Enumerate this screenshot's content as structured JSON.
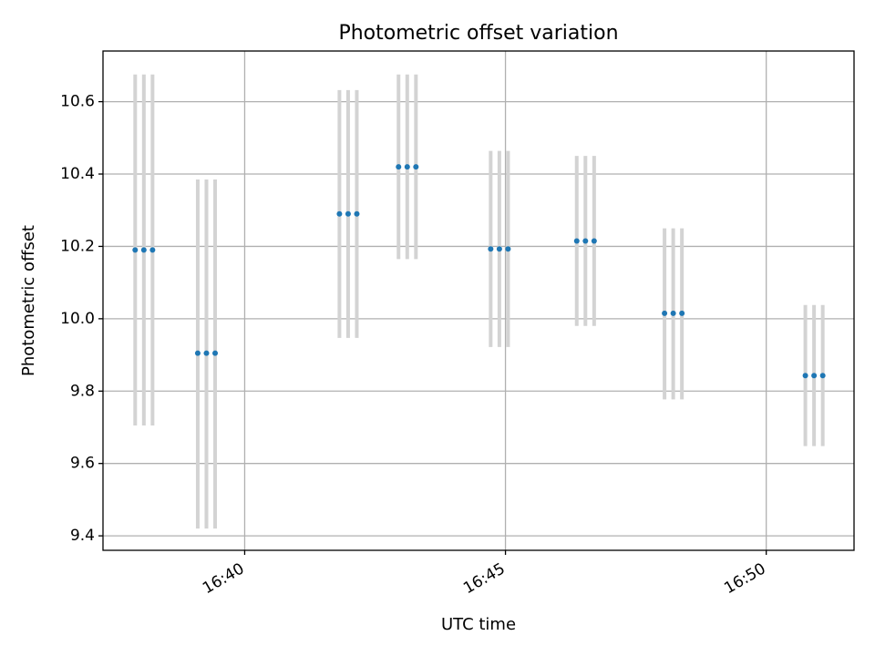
{
  "chart_data": {
    "type": "scatter",
    "title": "Photometric offset variation",
    "xlabel": "UTC time",
    "ylabel": "Photometric offset",
    "xlim": [
      "16:37:17",
      "16:51:41"
    ],
    "ylim": [
      9.36,
      10.74
    ],
    "grid": true,
    "x_ticks": [
      "16:40",
      "16:45",
      "16:50"
    ],
    "y_ticks": [
      9.4,
      9.6,
      9.8,
      10.0,
      10.2,
      10.4,
      10.6
    ],
    "colors": {
      "points": "#1f77b4",
      "error_bars": "#d3d3d3"
    },
    "series": [
      {
        "points": [
          {
            "x": "16:37:54",
            "y": 10.19,
            "yerr_low": 9.705,
            "yerr_high": 10.675
          },
          {
            "x": "16:38:04",
            "y": 10.19,
            "yerr_low": 9.705,
            "yerr_high": 10.675
          },
          {
            "x": "16:38:14",
            "y": 10.19,
            "yerr_low": 9.705,
            "yerr_high": 10.675
          },
          {
            "x": "16:39:06",
            "y": 9.905,
            "yerr_low": 9.42,
            "yerr_high": 10.385
          },
          {
            "x": "16:39:16",
            "y": 9.905,
            "yerr_low": 9.42,
            "yerr_high": 10.385
          },
          {
            "x": "16:39:26",
            "y": 9.905,
            "yerr_low": 9.42,
            "yerr_high": 10.385
          },
          {
            "x": "16:41:49",
            "y": 10.29,
            "yerr_low": 9.947,
            "yerr_high": 10.632
          },
          {
            "x": "16:41:59",
            "y": 10.29,
            "yerr_low": 9.947,
            "yerr_high": 10.632
          },
          {
            "x": "16:42:09",
            "y": 10.29,
            "yerr_low": 9.947,
            "yerr_high": 10.632
          },
          {
            "x": "16:42:57",
            "y": 10.42,
            "yerr_low": 10.165,
            "yerr_high": 10.675
          },
          {
            "x": "16:43:07",
            "y": 10.42,
            "yerr_low": 10.165,
            "yerr_high": 10.675
          },
          {
            "x": "16:43:17",
            "y": 10.42,
            "yerr_low": 10.165,
            "yerr_high": 10.675
          },
          {
            "x": "16:44:43",
            "y": 10.193,
            "yerr_low": 9.922,
            "yerr_high": 10.464
          },
          {
            "x": "16:44:53",
            "y": 10.193,
            "yerr_low": 9.922,
            "yerr_high": 10.464
          },
          {
            "x": "16:45:03",
            "y": 10.193,
            "yerr_low": 9.922,
            "yerr_high": 10.464
          },
          {
            "x": "16:46:22",
            "y": 10.215,
            "yerr_low": 9.98,
            "yerr_high": 10.45
          },
          {
            "x": "16:46:32",
            "y": 10.215,
            "yerr_low": 9.98,
            "yerr_high": 10.45
          },
          {
            "x": "16:46:42",
            "y": 10.215,
            "yerr_low": 9.98,
            "yerr_high": 10.45
          },
          {
            "x": "16:48:03",
            "y": 10.015,
            "yerr_low": 9.777,
            "yerr_high": 10.25
          },
          {
            "x": "16:48:13",
            "y": 10.015,
            "yerr_low": 9.777,
            "yerr_high": 10.25
          },
          {
            "x": "16:48:23",
            "y": 10.015,
            "yerr_low": 9.777,
            "yerr_high": 10.25
          },
          {
            "x": "16:50:45",
            "y": 9.843,
            "yerr_low": 9.648,
            "yerr_high": 10.038
          },
          {
            "x": "16:50:55",
            "y": 9.843,
            "yerr_low": 9.648,
            "yerr_high": 10.038
          },
          {
            "x": "16:51:05",
            "y": 9.843,
            "yerr_low": 9.648,
            "yerr_high": 10.038
          }
        ]
      }
    ]
  }
}
